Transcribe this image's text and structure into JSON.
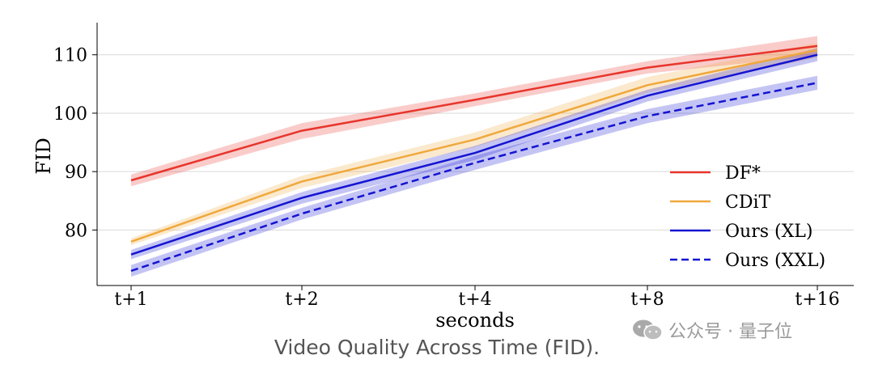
{
  "chart_data": {
    "type": "line",
    "categories": [
      "t+1",
      "t+2",
      "t+4",
      "t+8",
      "t+16"
    ],
    "xlabel": "seconds",
    "ylabel": "FID",
    "ylim": [
      70.5,
      115.5
    ],
    "yticks": [
      80,
      90,
      100,
      110
    ],
    "grid": "horizontal",
    "legend_position": "lower-right",
    "series": [
      {
        "name": "DF*",
        "color": "#e8352c",
        "line_style": "solid",
        "values": [
          88.5,
          97,
          102.3,
          107.8,
          111.5
        ],
        "lower": [
          87.5,
          95.6,
          101.2,
          106.8,
          109.8
        ],
        "upper": [
          89.5,
          98.3,
          103.4,
          108.9,
          113.2
        ]
      },
      {
        "name": "CDiT",
        "color": "#f0a83c",
        "line_style": "solid",
        "values": [
          78,
          88.3,
          95.5,
          104.8,
          110.8
        ],
        "lower": [
          77.4,
          87.2,
          94.2,
          103.5,
          109.5
        ],
        "upper": [
          78.6,
          89.3,
          96.7,
          106.2,
          112.0
        ]
      },
      {
        "name": "Ours (XL)",
        "color": "#1414d2",
        "line_style": "solid",
        "values": [
          75.8,
          85.5,
          93.2,
          103,
          110
        ],
        "lower": [
          75.0,
          84.5,
          92.0,
          102.0,
          108.9
        ],
        "upper": [
          76.6,
          86.5,
          94.4,
          104.0,
          111.1
        ]
      },
      {
        "name": "Ours (XXL)",
        "color": "#1414d2",
        "line_style": "dashed",
        "values": [
          73,
          82.8,
          91.5,
          99.5,
          105.2
        ],
        "lower": [
          72.0,
          81.8,
          90.3,
          98.3,
          104.0
        ],
        "upper": [
          74.0,
          83.8,
          92.7,
          100.7,
          106.4
        ]
      }
    ]
  },
  "caption": "Video Quality Across Time (FID).",
  "watermark": "公众号 · 量子位"
}
